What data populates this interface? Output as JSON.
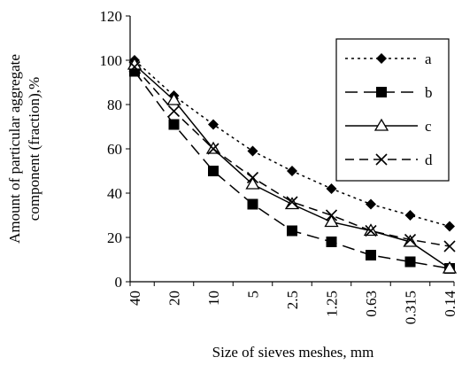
{
  "chart_data": {
    "type": "line",
    "xlabel": "Size of sieves meshes, mm",
    "ylabel_lines": [
      "Amount of particular aggregate",
      "component (fraction),%"
    ],
    "categories": [
      "40",
      "20",
      "10",
      "5",
      "2.5",
      "1.25",
      "0.63",
      "0.315",
      "0.14"
    ],
    "ylim": [
      0,
      120
    ],
    "yticks": [
      "0",
      "20",
      "40",
      "60",
      "80",
      "100",
      "120"
    ],
    "grid": false,
    "legend_placement": "top-right",
    "series": [
      {
        "name": "a",
        "values": [
          100,
          84,
          71,
          59,
          50,
          42,
          35,
          30,
          25
        ],
        "line": "dotted",
        "marker": "diamond"
      },
      {
        "name": "b",
        "values": [
          95,
          71,
          50,
          35,
          23,
          18,
          12,
          9,
          6
        ],
        "line": "long-dash",
        "marker": "square"
      },
      {
        "name": "c",
        "values": [
          98,
          82,
          60,
          44,
          35,
          27,
          23,
          18,
          6
        ],
        "line": "solid",
        "marker": "triangle"
      },
      {
        "name": "d",
        "values": [
          97,
          77,
          60,
          47,
          36,
          30,
          23,
          19,
          16
        ],
        "line": "dash",
        "marker": "x"
      }
    ]
  }
}
